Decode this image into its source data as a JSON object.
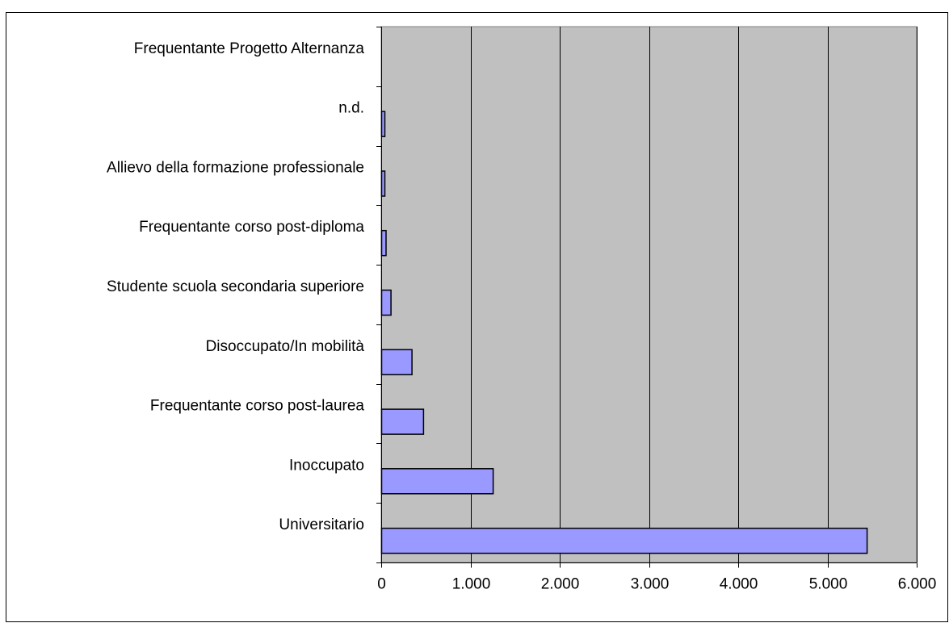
{
  "colors": {
    "plot_background": "#c0c0c0",
    "bar_fill": "#9999ff",
    "bar_stroke": "#000000",
    "gridline": "#000000"
  },
  "chart_data": {
    "type": "bar",
    "orientation": "horizontal",
    "categories": [
      "Universitario",
      "Inoccupato",
      "Frequentante corso post-laurea",
      "Disoccupato/In mobilità",
      "Studente scuola secondaria superiore",
      "Frequentante corso post-diploma",
      "Allievo della formazione professionale",
      "n.d.",
      "Frequentante Progetto Alternanza"
    ],
    "values": [
      5440,
      1250,
      470,
      340,
      105,
      50,
      35,
      30,
      0
    ],
    "xlim": [
      0,
      6000
    ],
    "xticks": [
      0,
      1000,
      2000,
      3000,
      4000,
      5000,
      6000
    ],
    "xtick_labels": [
      "0",
      "1.000",
      "2.000",
      "3.000",
      "4.000",
      "5.000",
      "6.000"
    ],
    "grid": "vertical major gridlines",
    "legend": "none",
    "title": "",
    "xlabel": "",
    "ylabel": ""
  }
}
